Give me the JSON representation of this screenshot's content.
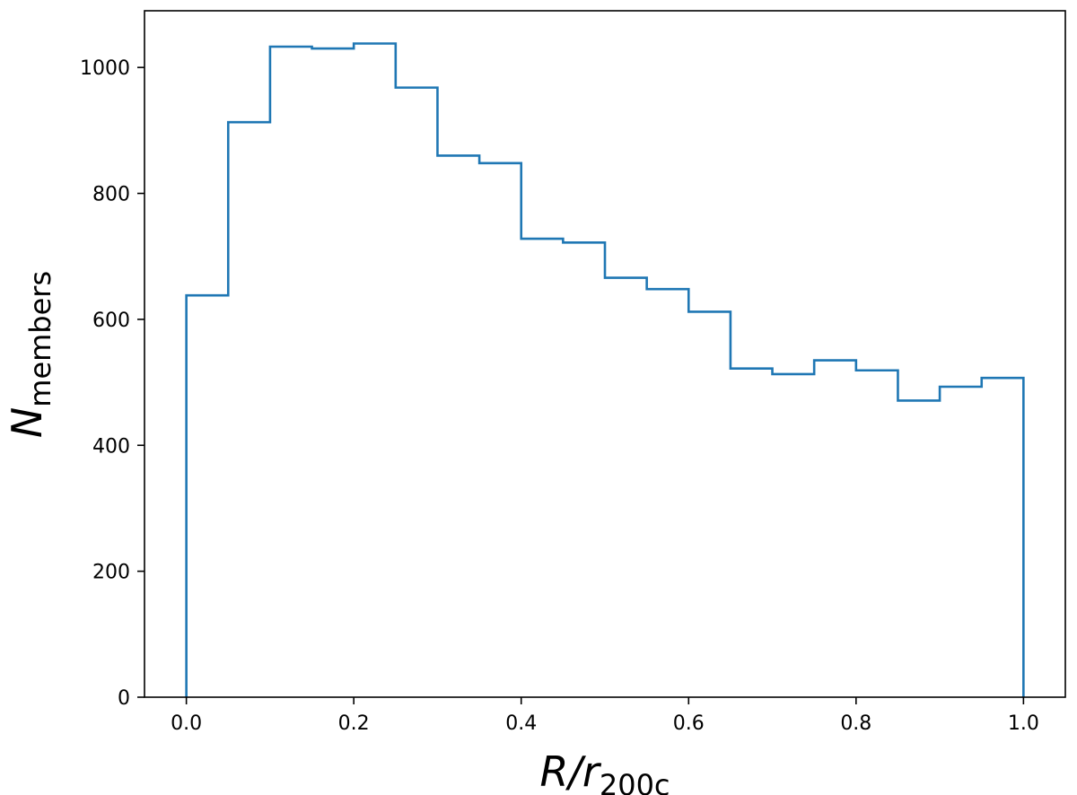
{
  "chart_data": {
    "type": "histogram-step",
    "bin_edges": [
      0.0,
      0.05,
      0.1,
      0.15,
      0.2,
      0.25,
      0.3,
      0.35,
      0.4,
      0.45,
      0.5,
      0.55,
      0.6,
      0.65,
      0.7,
      0.75,
      0.8,
      0.85,
      0.9,
      0.95,
      1.0
    ],
    "values": [
      638,
      913,
      1033,
      1030,
      1038,
      968,
      860,
      848,
      728,
      722,
      666,
      648,
      612,
      522,
      513,
      535,
      519,
      471,
      493,
      507
    ],
    "xlim": [
      -0.05,
      1.05
    ],
    "ylim": [
      0,
      1090
    ],
    "x_ticks": [
      0.0,
      0.2,
      0.4,
      0.6,
      0.8,
      1.0
    ],
    "x_tick_labels": [
      "0.0",
      "0.2",
      "0.4",
      "0.6",
      "0.8",
      "1.0"
    ],
    "y_ticks": [
      0,
      200,
      400,
      600,
      800,
      1000
    ],
    "y_tick_labels": [
      "0",
      "200",
      "400",
      "600",
      "800",
      "1000"
    ],
    "xlabel": {
      "main": "R/r",
      "sub": "200c"
    },
    "ylabel": {
      "main": "N",
      "sub": "members"
    },
    "line_color": "#1f77b4",
    "grid": false,
    "legend": "none"
  }
}
